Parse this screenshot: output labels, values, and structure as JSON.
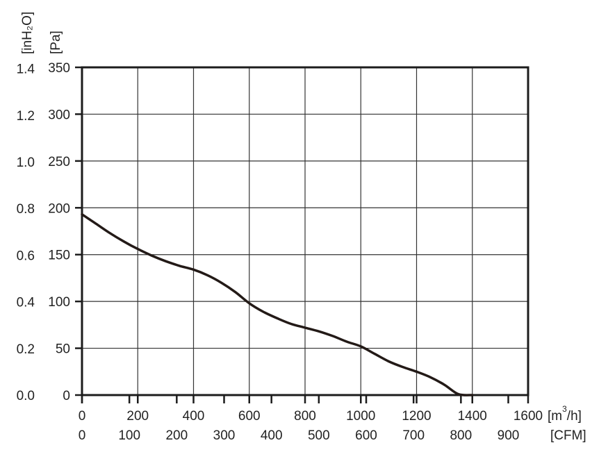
{
  "chart_data": {
    "type": "line",
    "title": "",
    "grid": true,
    "x_axis": {
      "primary": {
        "unit_label": "[m³/h]",
        "unit_base": "[m",
        "unit_sup": "3",
        "unit_tail": "/h]",
        "range": [
          0,
          1600
        ],
        "ticks": [
          "0",
          "200",
          "400",
          "600",
          "800",
          "1000",
          "1200",
          "1400",
          "1600"
        ]
      },
      "secondary": {
        "unit_label": "[CFM]",
        "range": [
          0,
          941.8
        ],
        "ticks": [
          "0",
          "100",
          "200",
          "300",
          "400",
          "500",
          "600",
          "700",
          "800",
          "900"
        ]
      }
    },
    "y_axis": {
      "primary": {
        "unit_label": "[Pa]",
        "range": [
          0,
          350
        ],
        "ticks": [
          "0",
          "50",
          "100",
          "150",
          "200",
          "250",
          "300",
          "350"
        ]
      },
      "secondary": {
        "unit_label": "[inH₂O]",
        "range": [
          0,
          1.405
        ],
        "ticks": [
          "0.0",
          "0.2",
          "0.4",
          "0.6",
          "0.8",
          "1.0",
          "1.2",
          "1.4"
        ]
      }
    },
    "series": [
      {
        "x_unit": "m3/h",
        "y_unit": "Pa",
        "color": "#231a17",
        "points": [
          [
            0,
            193
          ],
          [
            50,
            183
          ],
          [
            100,
            173
          ],
          [
            150,
            164
          ],
          [
            200,
            156
          ],
          [
            250,
            149
          ],
          [
            300,
            143
          ],
          [
            350,
            138
          ],
          [
            400,
            134
          ],
          [
            450,
            128
          ],
          [
            500,
            120
          ],
          [
            550,
            110
          ],
          [
            600,
            98
          ],
          [
            650,
            89
          ],
          [
            700,
            82
          ],
          [
            750,
            76
          ],
          [
            800,
            72
          ],
          [
            850,
            68
          ],
          [
            900,
            63
          ],
          [
            950,
            57
          ],
          [
            1000,
            52
          ],
          [
            1050,
            44
          ],
          [
            1100,
            36
          ],
          [
            1150,
            30
          ],
          [
            1200,
            25
          ],
          [
            1250,
            19
          ],
          [
            1300,
            11
          ],
          [
            1350,
            1
          ],
          [
            1400,
            0
          ]
        ]
      }
    ]
  }
}
